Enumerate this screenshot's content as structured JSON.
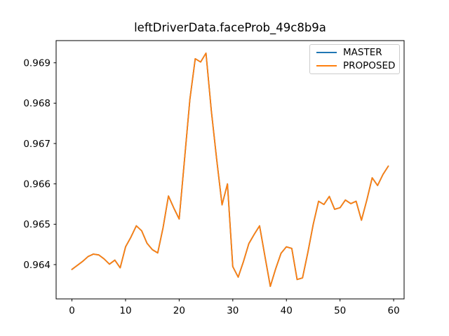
{
  "chart_data": {
    "type": "line",
    "title": "leftDriverData.faceProb_49c8b9a",
    "xlabel": "",
    "ylabel": "",
    "grid": false,
    "legend_position": "upper right",
    "xlim": [
      -2.95,
      61.95
    ],
    "ylim": [
      0.96315,
      0.96955
    ],
    "xticks": [
      0,
      10,
      20,
      30,
      40,
      50,
      60
    ],
    "yticks": [
      "0.964",
      "0.965",
      "0.966",
      "0.967",
      "0.968",
      "0.969"
    ],
    "ytick_values": [
      0.964,
      0.965,
      0.966,
      0.967,
      0.968,
      0.969
    ],
    "x": [
      0,
      1,
      2,
      3,
      4,
      5,
      6,
      7,
      8,
      9,
      10,
      11,
      12,
      13,
      14,
      15,
      16,
      17,
      18,
      19,
      20,
      21,
      22,
      23,
      24,
      25,
      26,
      27,
      28,
      29,
      30,
      31,
      32,
      33,
      34,
      35,
      36,
      37,
      38,
      39,
      40,
      41,
      42,
      43,
      44,
      45,
      46,
      47,
      48,
      49,
      50,
      51,
      52,
      53,
      54,
      55,
      56,
      57,
      58,
      59
    ],
    "series": [
      {
        "name": "MASTER",
        "color": "#1f77b4",
        "values": [
          0.96388,
          0.96398,
          0.96408,
          0.9642,
          0.96426,
          0.96424,
          0.96414,
          0.96401,
          0.96411,
          0.96392,
          0.96444,
          0.96468,
          0.96496,
          0.96484,
          0.96453,
          0.96437,
          0.96429,
          0.96492,
          0.9657,
          0.9654,
          0.96513,
          0.9666,
          0.9681,
          0.9691,
          0.96902,
          0.96924,
          0.9678,
          0.9666,
          0.96548,
          0.966,
          0.96395,
          0.96369,
          0.96408,
          0.96452,
          0.96475,
          0.96496,
          0.9642,
          0.96346,
          0.9639,
          0.96428,
          0.96444,
          0.9644,
          0.96363,
          0.96367,
          0.9643,
          0.965,
          0.96557,
          0.96549,
          0.96569,
          0.96537,
          0.96541,
          0.9656,
          0.96551,
          0.96557,
          0.9651,
          0.9656,
          0.96615,
          0.96596,
          0.96623,
          0.96644
        ]
      },
      {
        "name": "PROPOSED",
        "color": "#ff7f0e",
        "values": [
          0.96388,
          0.96398,
          0.96408,
          0.9642,
          0.96426,
          0.96424,
          0.96414,
          0.96401,
          0.96411,
          0.96392,
          0.96444,
          0.96468,
          0.96496,
          0.96484,
          0.96453,
          0.96437,
          0.96429,
          0.96492,
          0.9657,
          0.9654,
          0.96513,
          0.9666,
          0.9681,
          0.9691,
          0.96902,
          0.96924,
          0.9678,
          0.9666,
          0.96548,
          0.966,
          0.96395,
          0.96369,
          0.96408,
          0.96452,
          0.96475,
          0.96496,
          0.9642,
          0.96346,
          0.9639,
          0.96428,
          0.96444,
          0.9644,
          0.96363,
          0.96367,
          0.9643,
          0.965,
          0.96557,
          0.96549,
          0.96569,
          0.96537,
          0.96541,
          0.9656,
          0.96551,
          0.96557,
          0.9651,
          0.9656,
          0.96615,
          0.96596,
          0.96623,
          0.96644
        ]
      }
    ]
  }
}
